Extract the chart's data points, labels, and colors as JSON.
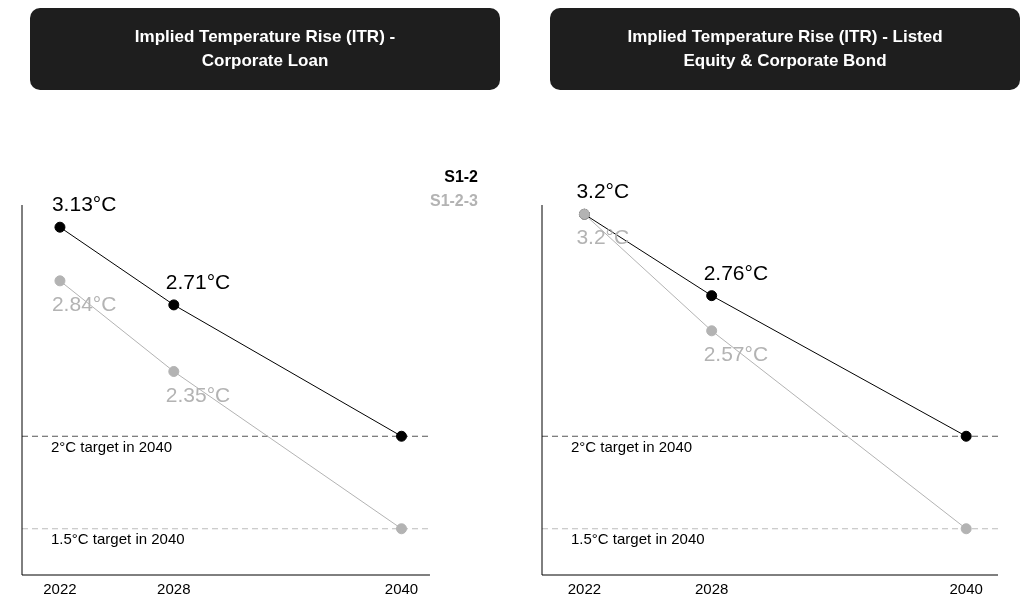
{
  "chart_data": [
    {
      "type": "line",
      "title": "Implied Temperature Rise (ITR) - Corporate Loan",
      "x": [
        2022,
        2028,
        2040
      ],
      "xlim": [
        2020,
        2041.5
      ],
      "xticks": [
        2022,
        2028,
        2040
      ],
      "ylim": [
        1.25,
        3.25
      ],
      "tick_labels": "x",
      "marker": "circle",
      "legend": "top right",
      "grid": false,
      "series": [
        {
          "name": "S1-2",
          "color": "#000000",
          "values": [
            3.13,
            2.71,
            2.0
          ],
          "value_labels": [
            "3.13°C",
            "2.71°C",
            null
          ]
        },
        {
          "name": "S1-2-3",
          "color": "#b3b3b3",
          "values": [
            2.84,
            2.35,
            1.5
          ],
          "value_labels": [
            "2.84°C",
            "2.35°C",
            null
          ]
        }
      ],
      "ref_lines": [
        {
          "axis": "y",
          "value": 2,
          "label": "2°C target in 2040",
          "color": "#555555",
          "line_style": "dashed"
        },
        {
          "axis": "y",
          "value": 1.5,
          "label": "1.5°C target in 2040",
          "color": "#bbbbbb",
          "line_style": "dashed"
        }
      ]
    },
    {
      "type": "line",
      "title": "Implied Temperature Rise (ITR) - Listed Equity & Corporate Bond",
      "x": [
        2022,
        2028,
        2040
      ],
      "xlim": [
        2020,
        2041.5
      ],
      "xticks": [
        2022,
        2028,
        2040
      ],
      "ylim": [
        1.25,
        3.25
      ],
      "tick_labels": "x",
      "marker": "circle",
      "grid": false,
      "series": [
        {
          "color": "#000000",
          "values": [
            3.2,
            2.76,
            2.0
          ],
          "value_labels": [
            "3.2°C",
            "2.76°C",
            null
          ]
        },
        {
          "color": "#b3b3b3",
          "values": [
            3.2,
            2.57,
            1.5
          ],
          "value_labels": [
            "3.2°C",
            "2.57°C",
            null
          ]
        }
      ],
      "ref_lines": [
        {
          "axis": "y",
          "value": 2,
          "label": "2°C target in 2040",
          "color": "#555555",
          "line_style": "dashed"
        },
        {
          "axis": "y",
          "value": 1.5,
          "label": "1.5°C target in 2040",
          "color": "#bbbbbb",
          "line_style": "dashed"
        }
      ]
    }
  ]
}
